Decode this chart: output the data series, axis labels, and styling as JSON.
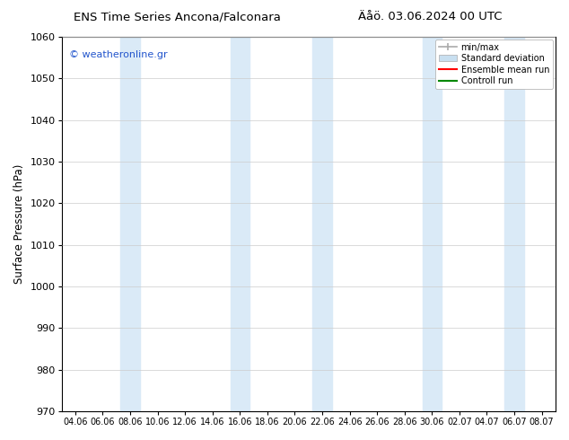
{
  "title_left": "ENS Time Series Ancona/Falconara",
  "title_right": "Äåö. 03.06.2024 00 UTC",
  "ylabel": "Surface Pressure (hPa)",
  "ylim": [
    970,
    1060
  ],
  "yticks": [
    970,
    980,
    990,
    1000,
    1010,
    1020,
    1030,
    1040,
    1050,
    1060
  ],
  "xtick_labels": [
    "04.06",
    "06.06",
    "08.06",
    "10.06",
    "12.06",
    "14.06",
    "16.06",
    "18.06",
    "20.06",
    "22.06",
    "24.06",
    "26.06",
    "28.06",
    "30.06",
    "02.07",
    "04.07",
    "06.07",
    "08.07"
  ],
  "watermark": "© weatheronline.gr",
  "bg_color": "#ffffff",
  "plot_bg_color": "#ffffff",
  "band_color": "#daeaf7",
  "band_x_centers": [
    2,
    3,
    6,
    7,
    9,
    10,
    13,
    15,
    16,
    17
  ],
  "legend_entries": [
    "min/max",
    "Standard deviation",
    "Ensemble mean run",
    "Controll run"
  ],
  "minmax_color": "#aaaaaa",
  "std_color": "#c8dff0",
  "ensemble_color": "#ff0000",
  "control_color": "#008800"
}
